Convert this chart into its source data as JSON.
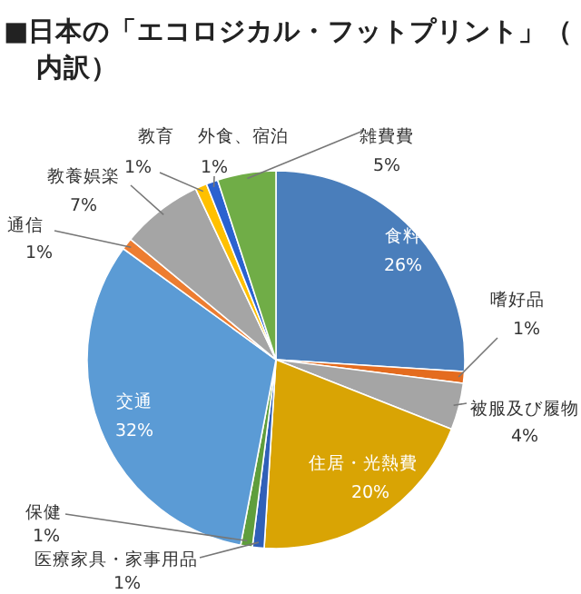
{
  "chart_data": {
    "type": "pie",
    "title": "■日本の「エコロジカル・フットプリント」（内訳）",
    "categories": [
      "食料",
      "嗜好品",
      "被服及び履物",
      "住居・光熱費",
      "医療家具・家事用品",
      "保健",
      "交通",
      "通信",
      "教養娯楽",
      "教育",
      "外食、宿泊",
      "雑費費"
    ],
    "values": [
      26,
      1,
      4,
      20,
      1,
      1,
      32,
      1,
      7,
      1,
      1,
      5
    ],
    "value_labels": [
      "26%",
      "1%",
      "4%",
      "20%",
      "1%",
      "1%",
      "32%",
      "1%",
      "7%",
      "1%",
      "1%",
      "5%"
    ],
    "colors": [
      "#4a7ebb",
      "#e46c1f",
      "#a5a5a5",
      "#d9a404",
      "#3060b8",
      "#5f9e3c",
      "#5b9bd5",
      "#ed7d31",
      "#a5a5a5",
      "#ffc000",
      "#2a62d0",
      "#70ad47"
    ]
  }
}
